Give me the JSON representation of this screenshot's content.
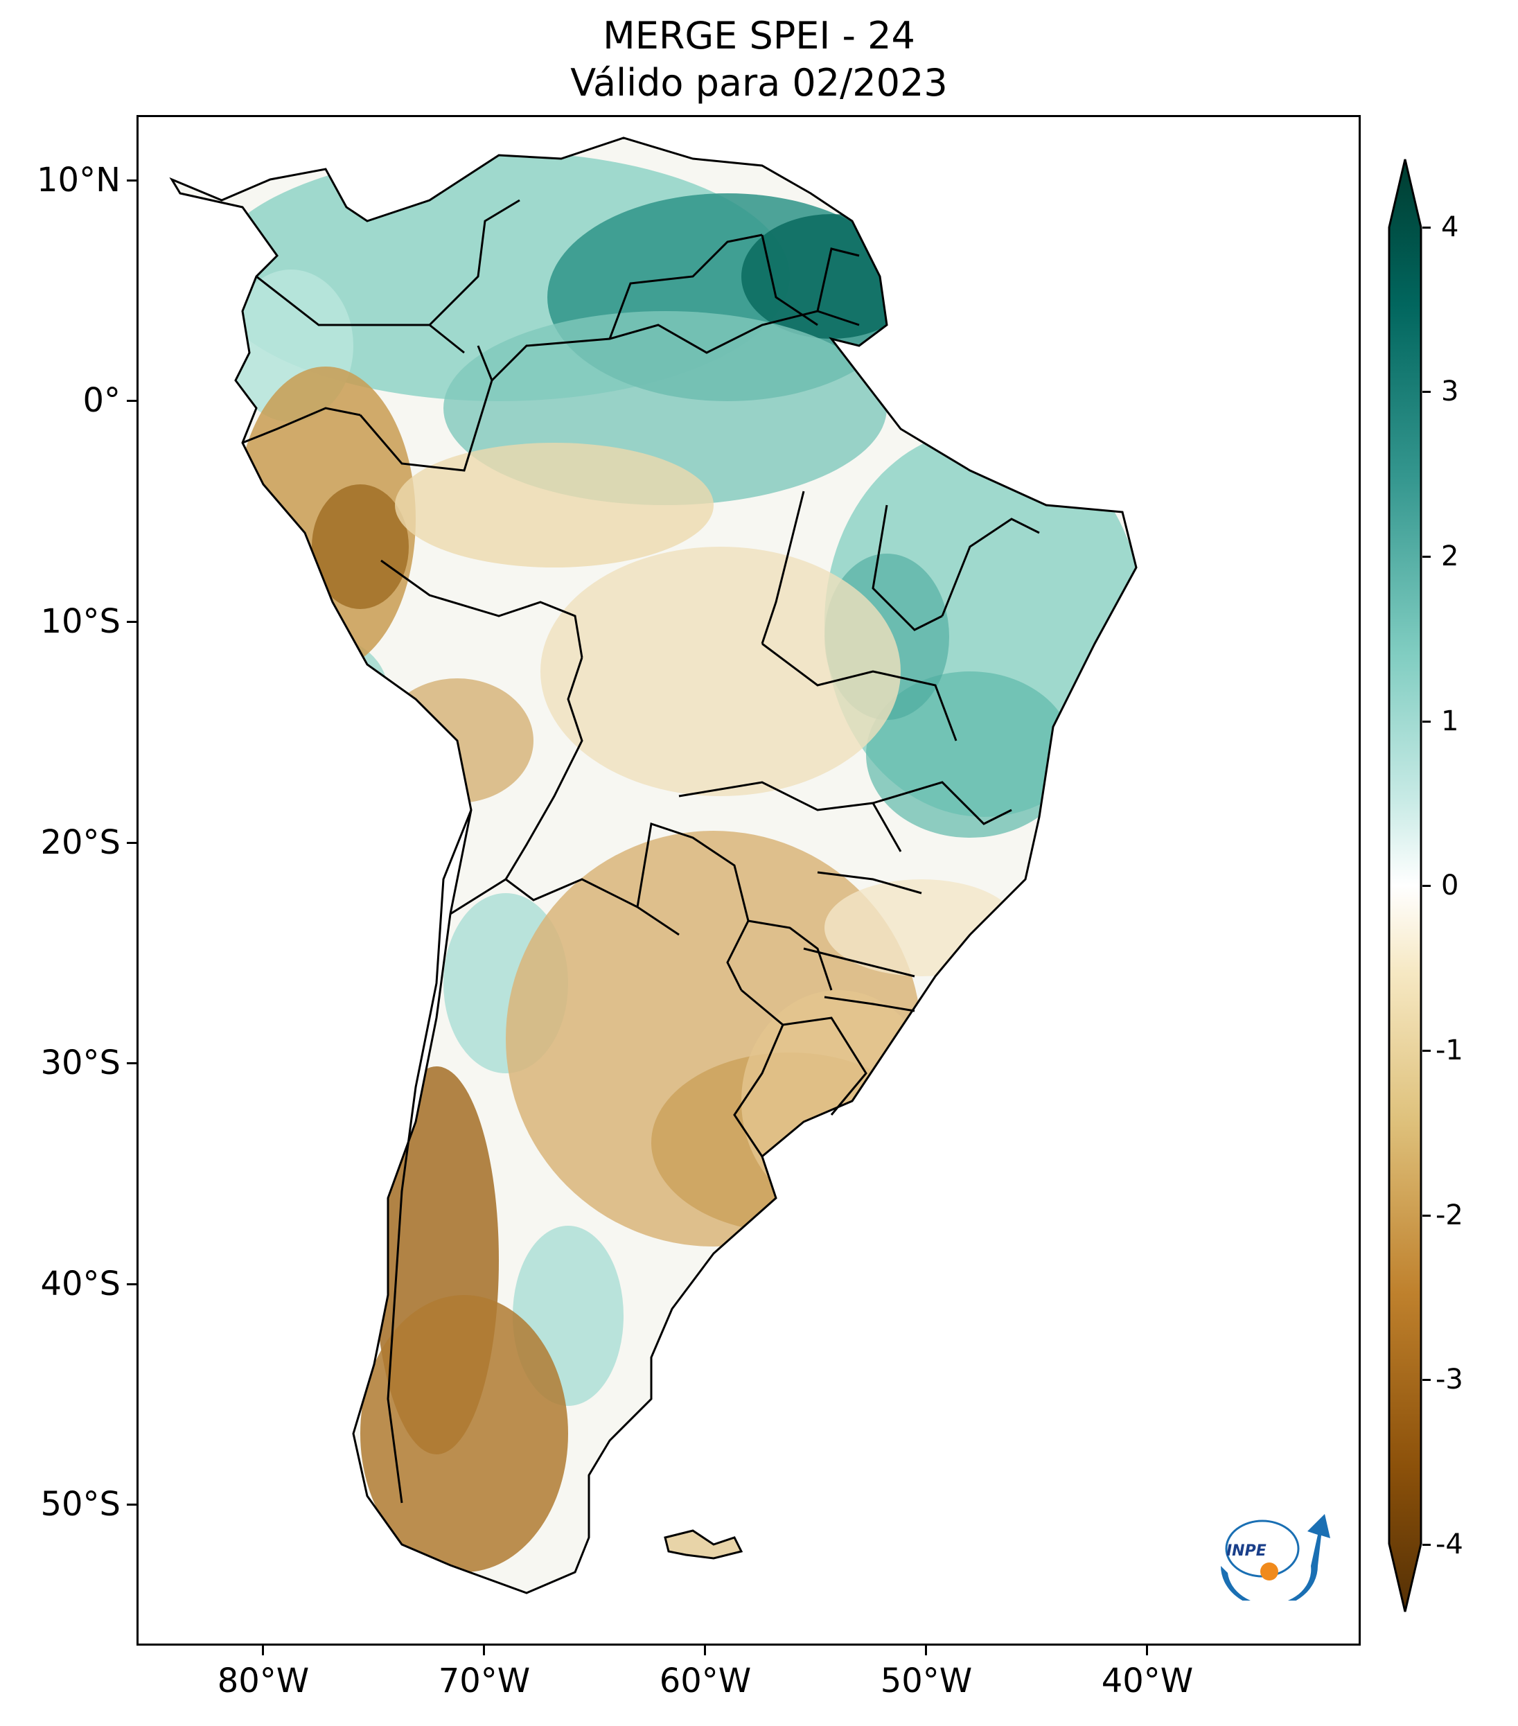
{
  "title": {
    "line1": "MERGE   SPEI - 24",
    "line2": "Válido para 02/2023"
  },
  "axes": {
    "lat_labels": [
      "10°N",
      "0°",
      "10°S",
      "20°S",
      "30°S",
      "40°S",
      "50°S"
    ],
    "lon_labels": [
      "80°W",
      "70°W",
      "60°W",
      "50°W",
      "40°W"
    ],
    "lon_range": [
      -86,
      -31
    ],
    "lat_range": [
      -56,
      13
    ]
  },
  "colorbar": {
    "label_values": [
      "4",
      "3",
      "2",
      "1",
      "0",
      "-1",
      "-2",
      "-3",
      "-4"
    ],
    "min": -4,
    "max": 4,
    "extend": "both",
    "colormap": "BrBG",
    "colors": [
      "#543005",
      "#8c510a",
      "#bf812d",
      "#dfc27d",
      "#f6e8c3",
      "#ffffff",
      "#c7eae5",
      "#80cdc1",
      "#35978f",
      "#01665e",
      "#003c30"
    ]
  },
  "logo": {
    "text": "INPE"
  }
}
